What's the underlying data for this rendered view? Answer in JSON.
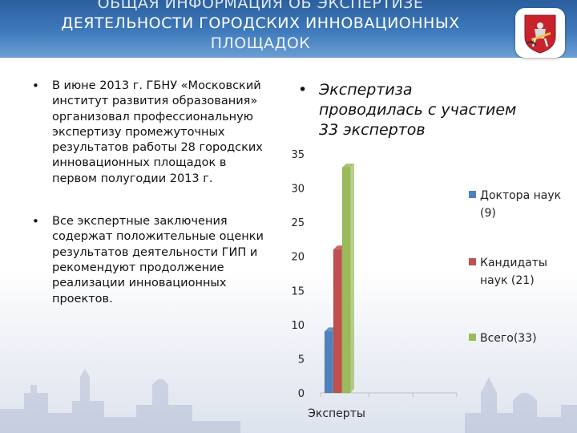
{
  "title": {
    "line1": "ОБЩАЯ ИНФОРМАЦИЯ ОБ ЭКСПЕРТИЗЕ",
    "line2": "ДЕЯТЕЛЬНОСТИ ГОРОДСКИХ ИННОВАЦИОННЫХ",
    "line3": "ПЛОЩАДОК"
  },
  "emblem": {
    "icon": "moscow-coat-of-arms-icon"
  },
  "left_bullets": [
    "В июне 2013 г. ГБНУ «Московский институт развития образования» организовал профессиональную экспертизу промежуточных результатов работы 28 городских инновационных площадок  в первом полугодии 2013 г.",
    "Все экспертные заключения содержат положительные оценки результатов деятельности  ГИП и рекомендуют продолжение реализации инновационных проектов."
  ],
  "right_bullet": "Экспертиза проводилась с участием 33 экспертов",
  "chart_data": {
    "type": "bar",
    "categories": [
      "Эксперты"
    ],
    "series": [
      {
        "name": "Доктора наук (9)",
        "values": [
          9
        ],
        "color": "#4f81bd"
      },
      {
        "name": "Кандидаты наук (21)",
        "values": [
          21
        ],
        "color": "#c0504d"
      },
      {
        "name": "Всего(33)",
        "values": [
          33
        ],
        "color": "#9bbb59"
      }
    ],
    "title": "",
    "xlabel": "",
    "ylabel": "",
    "ylim": [
      0,
      35
    ],
    "yticks": [
      "0",
      "5",
      "10",
      "15",
      "20",
      "25",
      "30",
      "35"
    ],
    "grid": false,
    "legend": "right"
  }
}
